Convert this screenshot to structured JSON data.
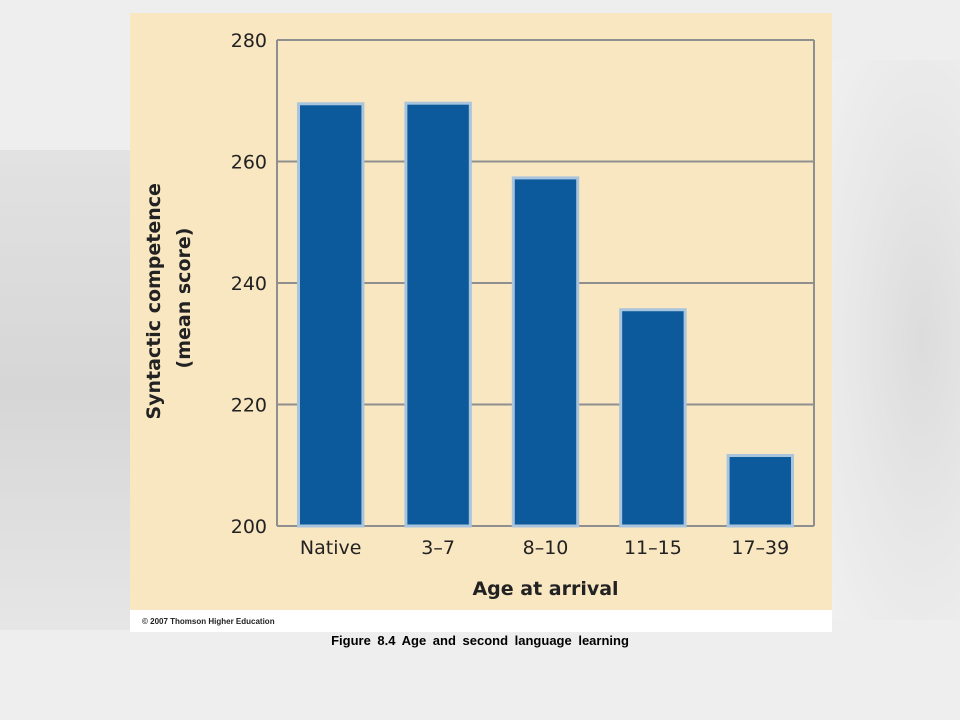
{
  "chart_data": {
    "type": "bar",
    "categories": [
      "Native",
      "3–7",
      "8–10",
      "11–15",
      "17–39"
    ],
    "values": [
      269.5,
      269.6,
      257.3,
      235.6,
      211.6
    ],
    "xlabel": "Age at arrival",
    "ylabel_lines": [
      "Syntactic competence",
      "(mean score)"
    ],
    "ylim": [
      200,
      280
    ],
    "yticks": [
      200,
      220,
      240,
      260,
      280
    ],
    "grid": true,
    "bar_color": "#0c5a9c",
    "bar_edge_color": "#a9c4dd",
    "background_color": "#f9e7c2"
  },
  "copyright": "© 2007 Thomson Higher Education",
  "caption": "Figure 8.4  Age and second language learning"
}
